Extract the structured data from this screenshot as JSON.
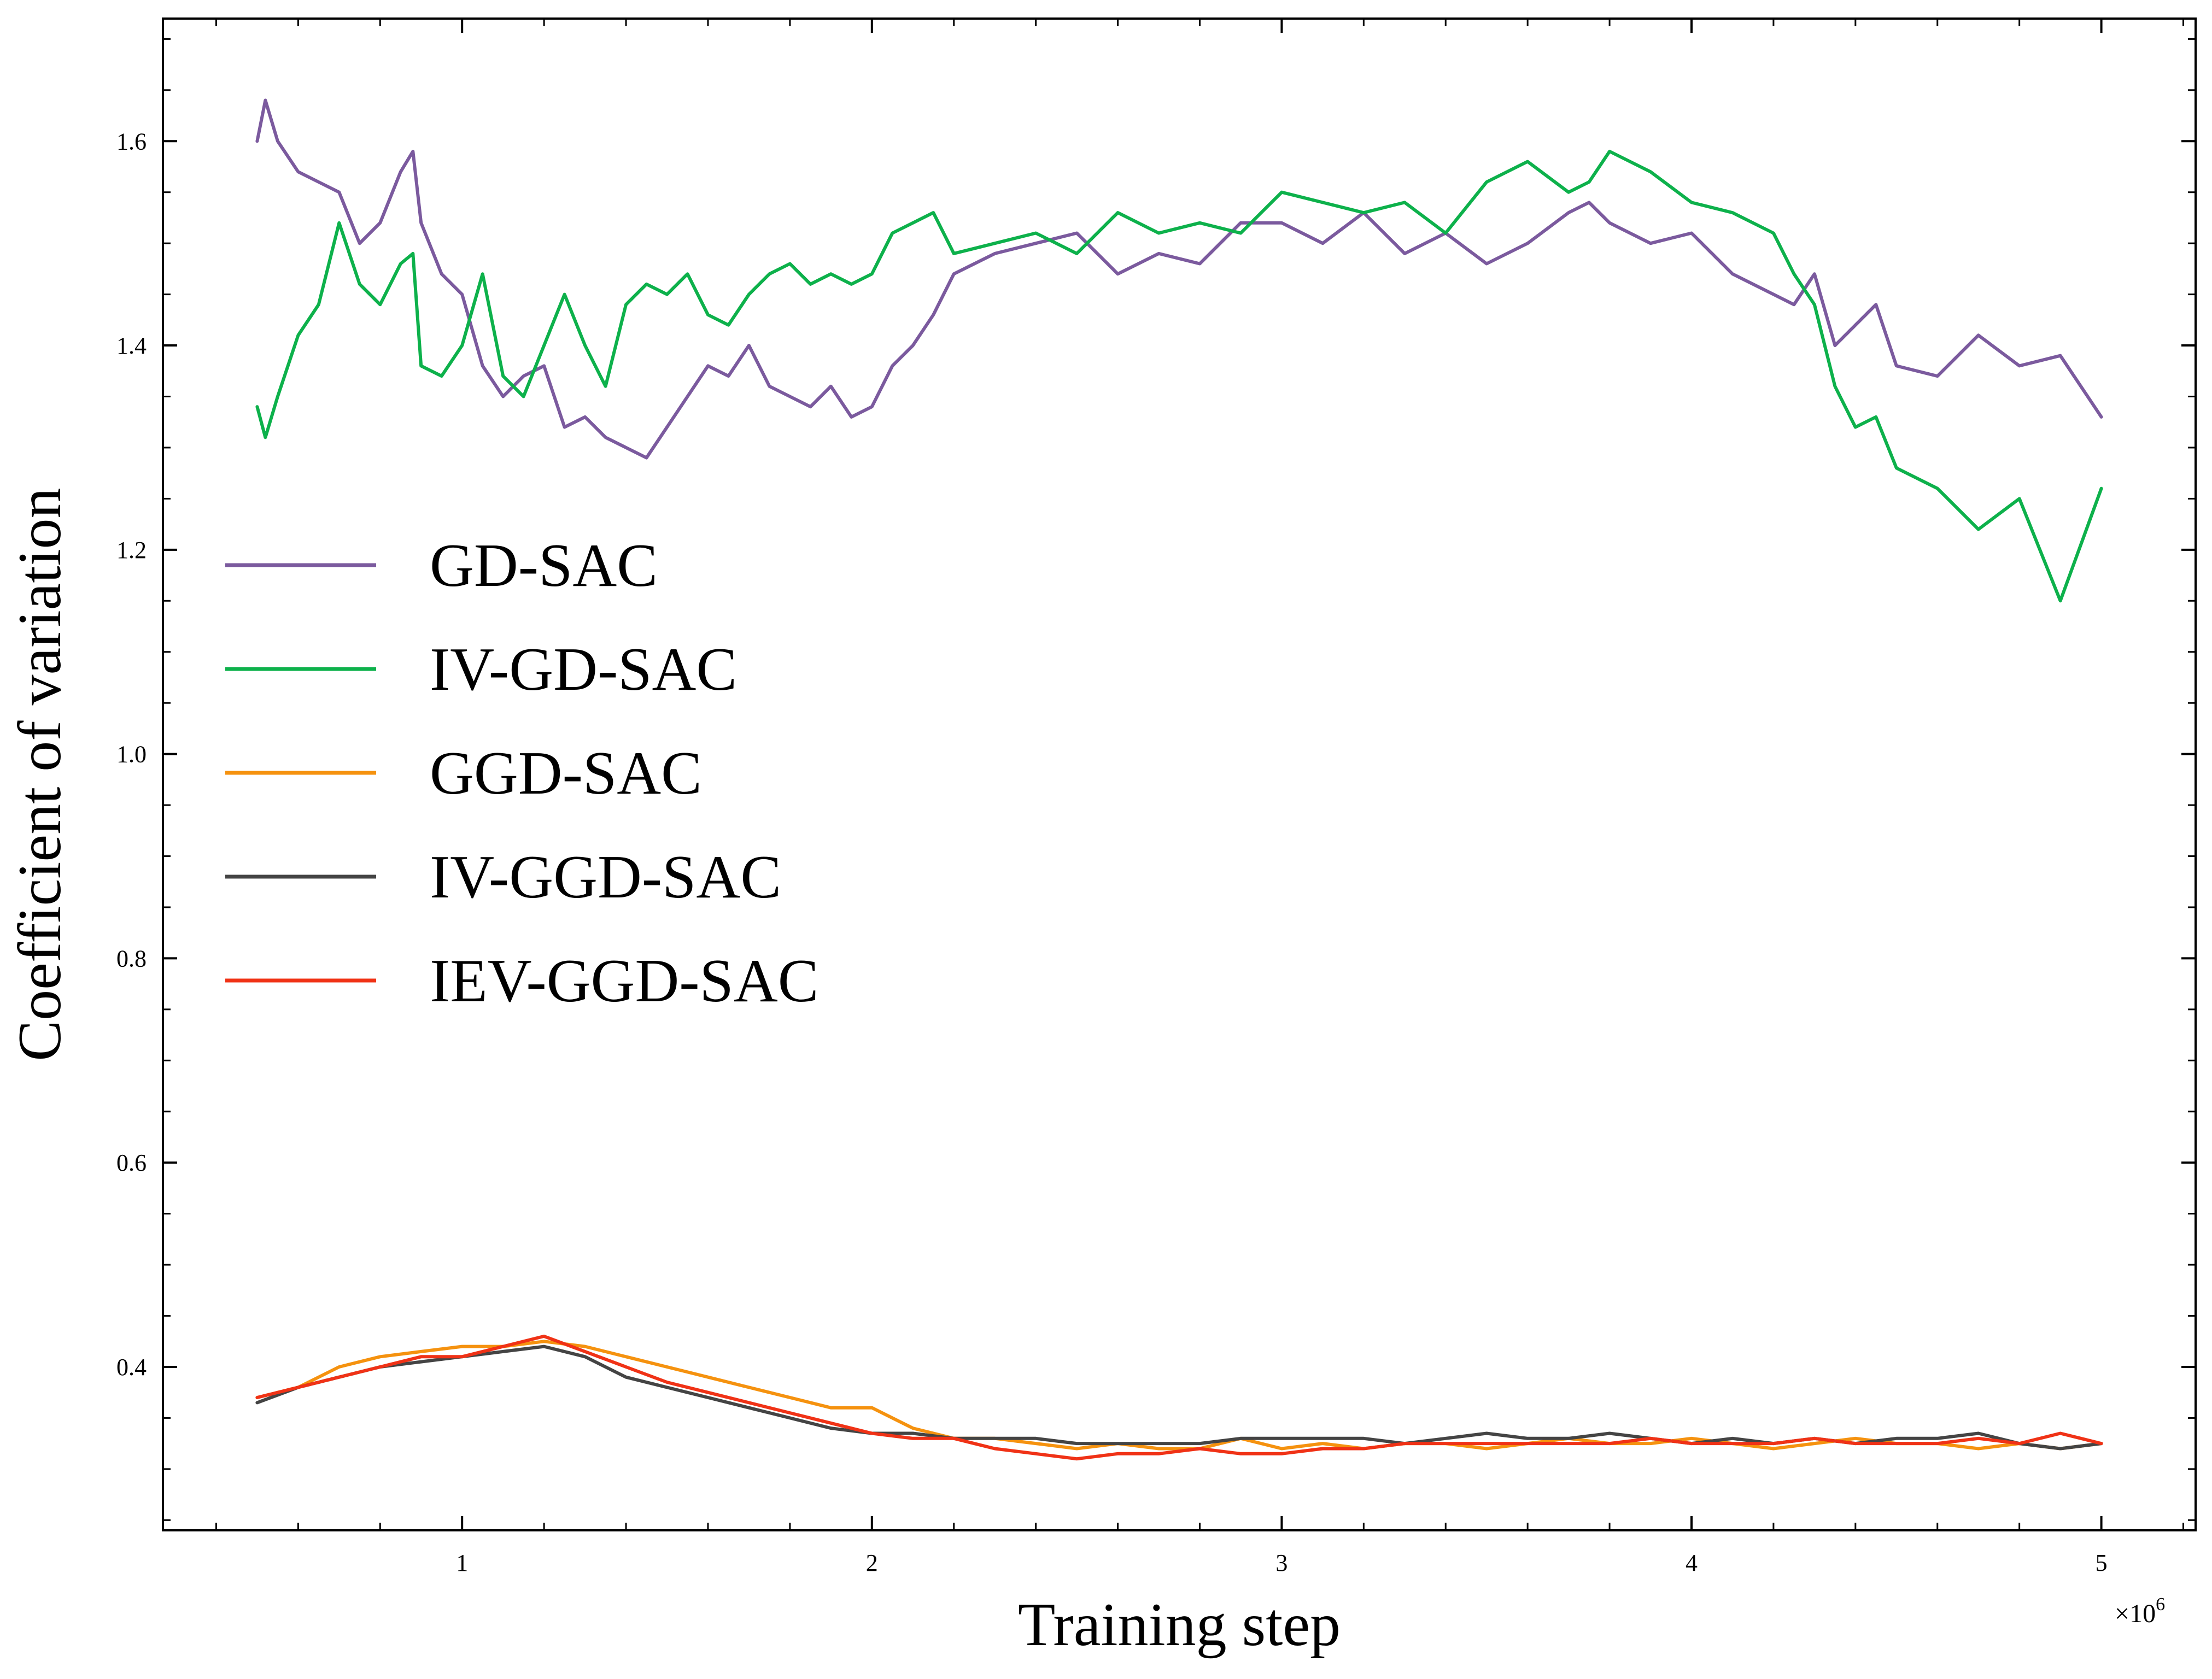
{
  "chart_data": {
    "type": "line",
    "title": "",
    "xlabel": "Training step",
    "ylabel": "Coefficient of variation",
    "x_offset_label": "×10",
    "x_offset_exponent": "6",
    "xlim": [
      0.27,
      5.23
    ],
    "ylim": [
      0.24,
      1.72
    ],
    "xticks": [
      1,
      2,
      3,
      4,
      5
    ],
    "xtick_labels": [
      "1",
      "2",
      "3",
      "4",
      "5"
    ],
    "yticks": [
      0.4,
      0.6,
      0.8,
      1.0,
      1.2,
      1.4,
      1.6
    ],
    "ytick_labels": [
      "0.4",
      "0.6",
      "0.8",
      "1.0",
      "1.2",
      "1.4",
      "1.6"
    ],
    "legend_position": "center-left",
    "grid": false,
    "series": [
      {
        "name": "GD-SAC",
        "color": "#7b5a9e",
        "x": [
          0.5,
          0.52,
          0.55,
          0.6,
          0.65,
          0.7,
          0.75,
          0.8,
          0.85,
          0.88,
          0.9,
          0.95,
          1.0,
          1.05,
          1.1,
          1.15,
          1.2,
          1.25,
          1.3,
          1.35,
          1.4,
          1.45,
          1.5,
          1.55,
          1.6,
          1.65,
          1.7,
          1.75,
          1.8,
          1.85,
          1.9,
          1.95,
          2.0,
          2.05,
          2.1,
          2.15,
          2.2,
          2.3,
          2.4,
          2.5,
          2.6,
          2.7,
          2.8,
          2.9,
          3.0,
          3.1,
          3.2,
          3.3,
          3.4,
          3.5,
          3.6,
          3.7,
          3.75,
          3.8,
          3.9,
          4.0,
          4.1,
          4.2,
          4.25,
          4.3,
          4.35,
          4.4,
          4.45,
          4.5,
          4.6,
          4.7,
          4.8,
          4.9,
          5.0
        ],
        "y": [
          1.6,
          1.64,
          1.6,
          1.57,
          1.56,
          1.55,
          1.5,
          1.52,
          1.57,
          1.59,
          1.52,
          1.47,
          1.45,
          1.38,
          1.35,
          1.37,
          1.38,
          1.32,
          1.33,
          1.31,
          1.3,
          1.29,
          1.32,
          1.35,
          1.38,
          1.37,
          1.4,
          1.36,
          1.35,
          1.34,
          1.36,
          1.33,
          1.34,
          1.38,
          1.4,
          1.43,
          1.47,
          1.49,
          1.5,
          1.51,
          1.47,
          1.49,
          1.48,
          1.52,
          1.52,
          1.5,
          1.53,
          1.49,
          1.51,
          1.48,
          1.5,
          1.53,
          1.54,
          1.52,
          1.5,
          1.51,
          1.47,
          1.45,
          1.44,
          1.47,
          1.4,
          1.42,
          1.44,
          1.38,
          1.37,
          1.41,
          1.38,
          1.39,
          1.33
        ]
      },
      {
        "name": "IV-GD-SAC",
        "color": "#0db14b",
        "x": [
          0.5,
          0.52,
          0.55,
          0.6,
          0.65,
          0.7,
          0.75,
          0.8,
          0.85,
          0.88,
          0.9,
          0.95,
          1.0,
          1.05,
          1.1,
          1.15,
          1.2,
          1.25,
          1.3,
          1.35,
          1.4,
          1.45,
          1.5,
          1.55,
          1.6,
          1.65,
          1.7,
          1.75,
          1.8,
          1.85,
          1.9,
          1.95,
          2.0,
          2.05,
          2.1,
          2.15,
          2.2,
          2.3,
          2.4,
          2.5,
          2.6,
          2.7,
          2.8,
          2.9,
          3.0,
          3.1,
          3.2,
          3.3,
          3.4,
          3.5,
          3.6,
          3.7,
          3.75,
          3.8,
          3.9,
          4.0,
          4.1,
          4.2,
          4.25,
          4.3,
          4.35,
          4.4,
          4.45,
          4.5,
          4.6,
          4.7,
          4.8,
          4.9,
          5.0
        ],
        "y": [
          1.34,
          1.31,
          1.35,
          1.41,
          1.44,
          1.52,
          1.46,
          1.44,
          1.48,
          1.49,
          1.38,
          1.37,
          1.4,
          1.47,
          1.37,
          1.35,
          1.4,
          1.45,
          1.4,
          1.36,
          1.44,
          1.46,
          1.45,
          1.47,
          1.43,
          1.42,
          1.45,
          1.47,
          1.48,
          1.46,
          1.47,
          1.46,
          1.47,
          1.51,
          1.52,
          1.53,
          1.49,
          1.5,
          1.51,
          1.49,
          1.53,
          1.51,
          1.52,
          1.51,
          1.55,
          1.54,
          1.53,
          1.54,
          1.51,
          1.56,
          1.58,
          1.55,
          1.56,
          1.59,
          1.57,
          1.54,
          1.53,
          1.51,
          1.47,
          1.44,
          1.36,
          1.32,
          1.33,
          1.28,
          1.26,
          1.22,
          1.25,
          1.15,
          1.26
        ]
      },
      {
        "name": "GGD-SAC",
        "color": "#f5920f",
        "x": [
          0.5,
          0.6,
          0.7,
          0.8,
          0.9,
          1.0,
          1.1,
          1.2,
          1.3,
          1.4,
          1.5,
          1.6,
          1.7,
          1.8,
          1.9,
          2.0,
          2.1,
          2.2,
          2.3,
          2.4,
          2.5,
          2.6,
          2.7,
          2.8,
          2.9,
          3.0,
          3.1,
          3.2,
          3.3,
          3.4,
          3.5,
          3.6,
          3.7,
          3.8,
          3.9,
          4.0,
          4.1,
          4.2,
          4.3,
          4.4,
          4.5,
          4.6,
          4.7,
          4.8,
          4.9,
          5.0
        ],
        "y": [
          0.37,
          0.38,
          0.4,
          0.41,
          0.415,
          0.42,
          0.42,
          0.425,
          0.42,
          0.41,
          0.4,
          0.39,
          0.38,
          0.37,
          0.36,
          0.36,
          0.34,
          0.33,
          0.33,
          0.325,
          0.32,
          0.325,
          0.32,
          0.32,
          0.33,
          0.32,
          0.325,
          0.32,
          0.325,
          0.325,
          0.32,
          0.325,
          0.33,
          0.325,
          0.325,
          0.33,
          0.325,
          0.32,
          0.325,
          0.33,
          0.325,
          0.325,
          0.32,
          0.325,
          0.32,
          0.325
        ]
      },
      {
        "name": "IV-GGD-SAC",
        "color": "#444444",
        "x": [
          0.5,
          0.6,
          0.7,
          0.8,
          0.9,
          1.0,
          1.1,
          1.2,
          1.3,
          1.4,
          1.5,
          1.6,
          1.7,
          1.8,
          1.9,
          2.0,
          2.1,
          2.2,
          2.3,
          2.4,
          2.5,
          2.6,
          2.7,
          2.8,
          2.9,
          3.0,
          3.1,
          3.2,
          3.3,
          3.4,
          3.5,
          3.6,
          3.7,
          3.8,
          3.9,
          4.0,
          4.1,
          4.2,
          4.3,
          4.4,
          4.5,
          4.6,
          4.7,
          4.8,
          4.9,
          5.0
        ],
        "y": [
          0.365,
          0.38,
          0.39,
          0.4,
          0.405,
          0.41,
          0.415,
          0.42,
          0.41,
          0.39,
          0.38,
          0.37,
          0.36,
          0.35,
          0.34,
          0.335,
          0.335,
          0.33,
          0.33,
          0.33,
          0.325,
          0.325,
          0.325,
          0.325,
          0.33,
          0.33,
          0.33,
          0.33,
          0.325,
          0.33,
          0.335,
          0.33,
          0.33,
          0.335,
          0.33,
          0.325,
          0.33,
          0.325,
          0.33,
          0.325,
          0.33,
          0.33,
          0.335,
          0.325,
          0.32,
          0.325
        ]
      },
      {
        "name": "IEV-GGD-SAC",
        "color": "#f03216",
        "x": [
          0.5,
          0.6,
          0.7,
          0.8,
          0.9,
          1.0,
          1.1,
          1.2,
          1.3,
          1.4,
          1.5,
          1.6,
          1.7,
          1.8,
          1.9,
          2.0,
          2.1,
          2.2,
          2.3,
          2.4,
          2.5,
          2.6,
          2.7,
          2.8,
          2.9,
          3.0,
          3.1,
          3.2,
          3.3,
          3.4,
          3.5,
          3.6,
          3.7,
          3.8,
          3.9,
          4.0,
          4.1,
          4.2,
          4.3,
          4.4,
          4.5,
          4.6,
          4.7,
          4.8,
          4.9,
          5.0
        ],
        "y": [
          0.37,
          0.38,
          0.39,
          0.4,
          0.41,
          0.41,
          0.42,
          0.43,
          0.415,
          0.4,
          0.385,
          0.375,
          0.365,
          0.355,
          0.345,
          0.335,
          0.33,
          0.33,
          0.32,
          0.315,
          0.31,
          0.315,
          0.315,
          0.32,
          0.315,
          0.315,
          0.32,
          0.32,
          0.325,
          0.325,
          0.325,
          0.325,
          0.325,
          0.325,
          0.33,
          0.325,
          0.325,
          0.325,
          0.33,
          0.325,
          0.325,
          0.325,
          0.33,
          0.325,
          0.335,
          0.325
        ]
      }
    ]
  }
}
